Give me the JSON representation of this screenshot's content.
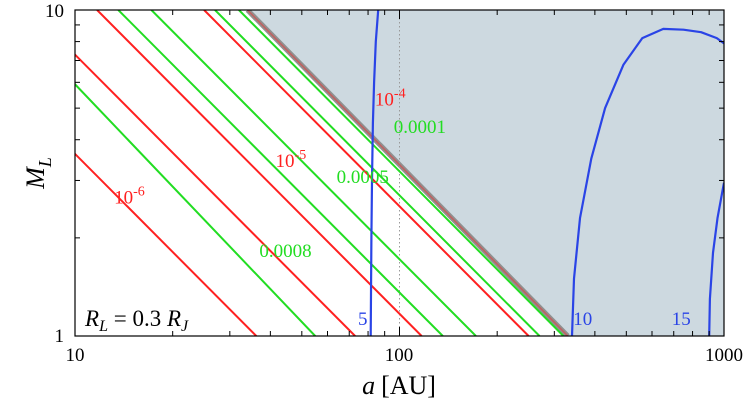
{
  "chart_data": {
    "type": "line",
    "xscale": "log",
    "yscale": "log",
    "xlim": [
      10,
      1000
    ],
    "ylim": [
      1,
      10
    ],
    "xlabel_main": "a",
    "xlabel_unit": "[AU]",
    "ylabel_main": "M",
    "ylabel_sub": "L",
    "x_tick_labels": [
      "10",
      "100",
      "1000"
    ],
    "y_tick_labels": [
      "1",
      "10"
    ],
    "annotation": {
      "r": "R",
      "r_sub": "L",
      "eq": " = 0.3 ",
      "rj": "R",
      "rj_sub": "J"
    },
    "colors": {
      "red": "#ff2020",
      "green": "#22dd22",
      "blue": "#2a44e6",
      "shade": "#cdd9e0",
      "boundary_red": "#c06060",
      "boundary_gray": "#909090",
      "dotted": "#999999"
    },
    "shaded_region": {
      "boundary": [
        [
          34,
          10
        ],
        [
          330,
          1
        ]
      ]
    },
    "vertical_reference_x": 100,
    "red_lines": [
      {
        "points": [
          [
            11.7,
            10
          ],
          [
            117,
            1
          ]
        ],
        "label_base": "10",
        "label_exp": "-4",
        "label_at": [
          84,
          5.1
        ]
      },
      {
        "points": [
          [
            25,
            10
          ],
          [
            250,
            1
          ]
        ],
        "label_base": null,
        "label_exp": null,
        "label_at": null
      },
      {
        "points": [
          [
            3.62,
            10
          ],
          [
            36.2,
            1
          ]
        ],
        "label_base": "10",
        "label_exp": "-6",
        "label_at": [
          13.2,
          2.55
        ]
      },
      {
        "points": [
          [
            7.3,
            10
          ],
          [
            73,
            1
          ]
        ],
        "label_base": "10",
        "label_exp": "-5",
        "label_at": [
          41.5,
          3.3
        ]
      }
    ],
    "green_lines": [
      {
        "points": [
          [
            13.6,
            10
          ],
          [
            136,
            1
          ]
        ],
        "label": "0.0001",
        "label_at": [
          96,
          4.2
        ]
      },
      {
        "points": [
          [
            17.2,
            10
          ],
          [
            172,
            1
          ]
        ],
        "label": null,
        "label_at": null
      },
      {
        "points": [
          [
            27,
            10
          ],
          [
            270,
            1
          ]
        ],
        "label": "0.0005",
        "label_at": [
          64,
          2.95
        ]
      },
      {
        "points": [
          [
            32,
            10
          ],
          [
            320,
            1
          ]
        ],
        "label": null,
        "label_at": null
      },
      {
        "points": [
          [
            7.4,
            8.1
          ],
          [
            55,
            1
          ]
        ],
        "label": "0.0008",
        "label_at": [
          37,
          1.75
        ]
      }
    ],
    "blue_curves": [
      {
        "label": "5",
        "label_at": [
          74.5,
          1.08
        ],
        "points": [
          [
            81.5,
            1
          ],
          [
            81.9,
            2
          ],
          [
            82.3,
            3
          ],
          [
            82.8,
            4.5
          ],
          [
            83.5,
            6
          ],
          [
            84.5,
            8
          ],
          [
            86,
            10
          ]
        ]
      },
      {
        "label": "10",
        "label_at": [
          343,
          1.08
        ],
        "points": [
          [
            340,
            1
          ],
          [
            345,
            1.5
          ],
          [
            360,
            2.3
          ],
          [
            390,
            3.5
          ],
          [
            430,
            5.0
          ],
          [
            490,
            6.8
          ],
          [
            560,
            8.2
          ],
          [
            650,
            8.75
          ],
          [
            750,
            8.7
          ],
          [
            850,
            8.55
          ],
          [
            950,
            8.2
          ],
          [
            1000,
            7.9
          ]
        ]
      },
      {
        "label": "15",
        "label_at": [
          690,
          1.08
        ],
        "points": [
          [
            900,
            1
          ],
          [
            905,
            1.3
          ],
          [
            925,
            1.8
          ],
          [
            955,
            2.3
          ],
          [
            990,
            2.8
          ],
          [
            1000,
            2.95
          ]
        ]
      }
    ]
  }
}
